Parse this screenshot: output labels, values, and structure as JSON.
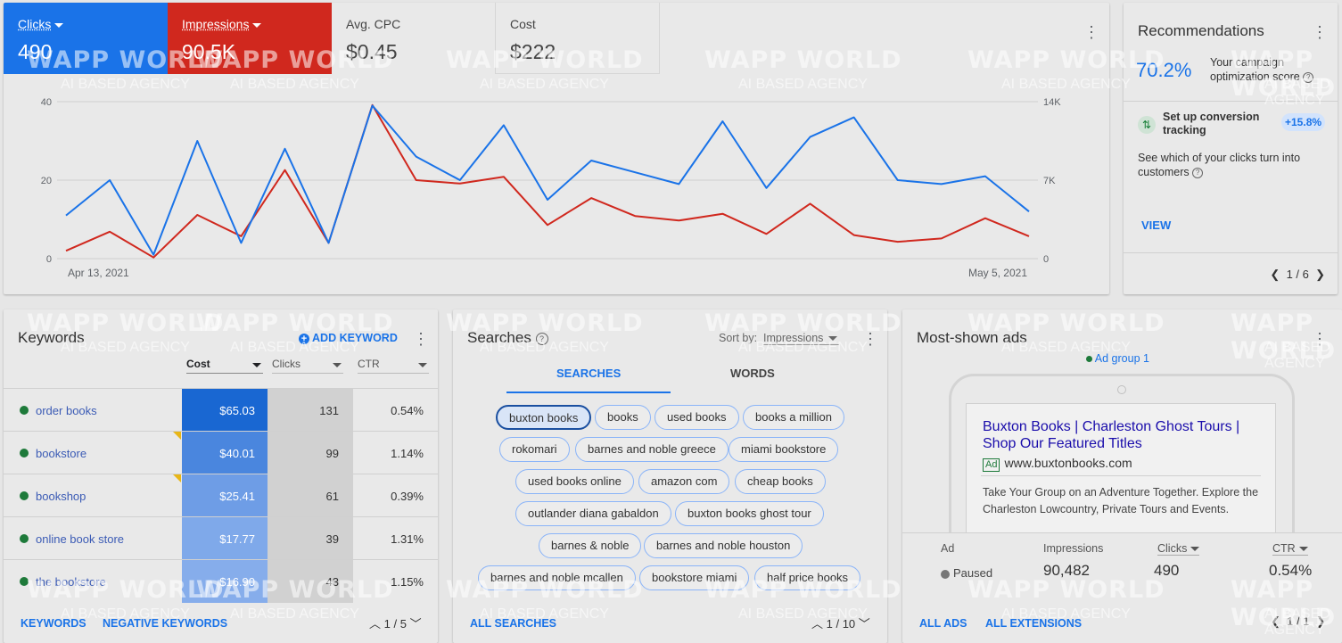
{
  "overview": {
    "metrics": [
      {
        "label": "Clicks",
        "value": "490"
      },
      {
        "label": "Impressions",
        "value": "90.5K"
      },
      {
        "label": "Avg. CPC",
        "value": "$0.45"
      },
      {
        "label": "Cost",
        "value": "$222"
      }
    ],
    "colors": {
      "clicks": "#1a73e8",
      "impressions": "#d0281e"
    }
  },
  "chart_data": {
    "type": "line",
    "x_start_label": "Apr 13, 2021",
    "x_end_label": "May 5, 2021",
    "y_left_ticks": [
      "40",
      "20",
      "0"
    ],
    "y_right_ticks": [
      "14K",
      "7K",
      "0"
    ],
    "ylim_left": [
      0,
      40
    ],
    "ylim_right": [
      0,
      14000
    ],
    "grid": true,
    "series": [
      {
        "name": "Clicks",
        "color": "#1a73e8",
        "axis": "left",
        "values": [
          11,
          20,
          1,
          30,
          4,
          28,
          4,
          39,
          26,
          20,
          34,
          15,
          25,
          22,
          19,
          35,
          18,
          31,
          36,
          20,
          19,
          21,
          12
        ]
      },
      {
        "name": "Impressions",
        "color": "#d0281e",
        "axis": "right",
        "values": [
          700,
          2400,
          100,
          3900,
          2000,
          7900,
          1400,
          13700,
          7000,
          6700,
          7300,
          3000,
          5400,
          3800,
          3400,
          4000,
          2200,
          4900,
          2100,
          1500,
          1800,
          3600,
          2000
        ]
      }
    ]
  },
  "recommendations": {
    "title": "Recommendations",
    "score": "70.2%",
    "score_text": "Your campaign optimization score",
    "tip_title": "Set up conversion tracking",
    "tip_badge": "+15.8%",
    "tip_desc": "See which of your clicks turn into customers",
    "view_label": "VIEW",
    "pager": "1 / 6"
  },
  "keywords": {
    "title": "Keywords",
    "add_label": "ADD KEYWORD",
    "columns": [
      "Cost",
      "Clicks",
      "CTR"
    ],
    "rows": [
      {
        "keyword": "order books",
        "cost": "$65.03",
        "clicks": "131",
        "ctr": "0.54%",
        "cost_shade": "#1967d2"
      },
      {
        "keyword": "bookstore",
        "cost": "$40.01",
        "clicks": "99",
        "ctr": "1.14%",
        "cost_shade": "#4a86de"
      },
      {
        "keyword": "bookshop",
        "cost": "$25.41",
        "clicks": "61",
        "ctr": "0.39%",
        "cost_shade": "#6e9de6"
      },
      {
        "keyword": "online book store",
        "cost": "$17.77",
        "clicks": "39",
        "ctr": "1.31%",
        "cost_shade": "#7fa9ea"
      },
      {
        "keyword": "the bookstore",
        "cost": "$16.90",
        "clicks": "43",
        "ctr": "1.15%",
        "cost_shade": "#86adeb"
      }
    ],
    "footer_keywords": "KEYWORDS",
    "footer_negative": "NEGATIVE KEYWORDS",
    "pager": "1 / 5"
  },
  "searches": {
    "title": "Searches",
    "sort_label": "Sort by:",
    "sort_value": "Impressions",
    "tabs": [
      "SEARCHES",
      "WORDS"
    ],
    "chips": [
      "buxton books",
      "books",
      "used books",
      "books a million",
      "rokomari",
      "barnes and noble greece",
      "miami bookstore",
      "used books online",
      "amazon com",
      "cheap books",
      "outlander diana gabaldon",
      "buxton books ghost tour",
      "barnes & noble",
      "barnes and noble houston",
      "barnes and noble mcallen",
      "bookstore miami",
      "half price books"
    ],
    "footer_all": "ALL SEARCHES",
    "pager": "1 / 10"
  },
  "ads": {
    "title": "Most-shown ads",
    "ad_group": "Ad group 1",
    "ad_title": "Buxton Books | Charleston Ghost Tours | Shop Our Featured Titles",
    "ad_badge": "Ad",
    "ad_url": "www.buxtonbooks.com",
    "ad_desc": "Take Your Group on an Adventure Together. Explore the Charleston Lowcountry, Private Tours and Events.",
    "headers": [
      "Ad",
      "Impressions",
      "Clicks",
      "CTR"
    ],
    "status": "Paused",
    "impressions": "90,482",
    "clicks": "490",
    "ctr": "0.54%",
    "footer_all_ads": "ALL ADS",
    "footer_all_ext": "ALL EXTENSIONS",
    "pager": "1 / 1"
  },
  "watermark": {
    "brand": "WAPP WORLD",
    "tagline": "AI BASED AGENCY"
  }
}
